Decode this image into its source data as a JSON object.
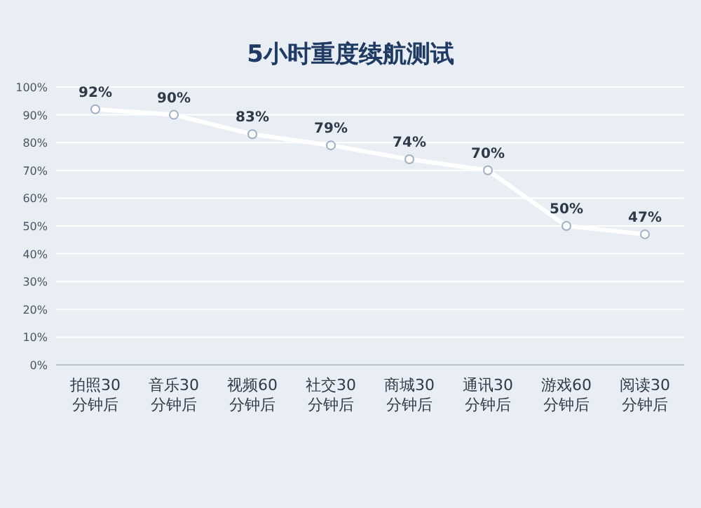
{
  "chart_data": {
    "type": "line",
    "title": "5小时重度续航测试",
    "categories": [
      "拍照30分钟后",
      "音乐30分钟后",
      "视频60分钟后",
      "社交30分钟后",
      "商城30分钟后",
      "通讯30分钟后",
      "游戏60分钟后",
      "阅读30分钟后"
    ],
    "values": [
      92,
      90,
      83,
      79,
      74,
      70,
      50,
      47
    ],
    "value_labels": [
      "92%",
      "90%",
      "83%",
      "79%",
      "74%",
      "70%",
      "50%",
      "47%"
    ],
    "color": "#ffffff",
    "marker": "circle",
    "grid": "y",
    "ylim": [
      0,
      100
    ],
    "yticks": [
      {
        "value": 0,
        "label": "0%"
      },
      {
        "value": 10,
        "label": "10%"
      },
      {
        "value": 20,
        "label": "20%"
      },
      {
        "value": 30,
        "label": "30%"
      },
      {
        "value": 40,
        "label": "40%"
      },
      {
        "value": 50,
        "label": "50%"
      },
      {
        "value": 60,
        "label": "60%"
      },
      {
        "value": 70,
        "label": "70%"
      },
      {
        "value": 80,
        "label": "80%"
      },
      {
        "value": 90,
        "label": "90%"
      },
      {
        "value": 100,
        "label": "100%"
      }
    ]
  }
}
